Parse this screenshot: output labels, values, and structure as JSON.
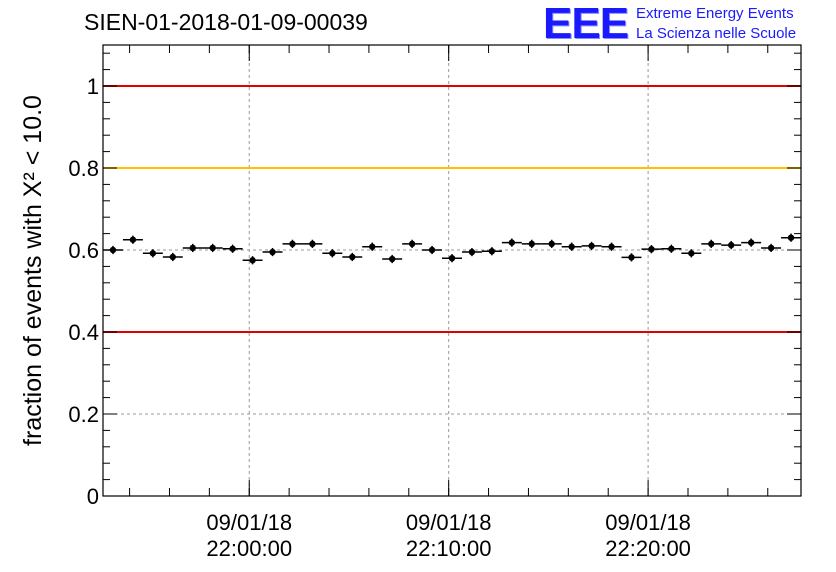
{
  "header": {
    "title": "SIEN-01-2018-01-09-00039"
  },
  "logo": {
    "mark": "EEE",
    "line1": "Extreme Energy Events",
    "line2": "La Scienza nelle Scuole"
  },
  "colors": {
    "limit_low_high": "#e00000",
    "limit_warning": "#ffc000",
    "markers": "#000000",
    "grid": "#999999",
    "logo": "#1a1aff"
  },
  "chart_data": {
    "type": "scatter",
    "title": "SIEN-01-2018-01-09-00039",
    "ylabel": "fraction of events with X² < 10.0",
    "xlabel": "",
    "ylim": [
      0,
      1.1
    ],
    "yticks": [
      0,
      0.2,
      0.4,
      0.6,
      0.8,
      1
    ],
    "ytick_labels": [
      "0",
      "0.2",
      "0.4",
      "0.6",
      "0.8",
      "1"
    ],
    "xlim": [
      "2018-01-09 21:52:40",
      "2018-01-09 22:27:40"
    ],
    "xticks": [
      "2018-01-09 22:00:00",
      "2018-01-09 22:10:00",
      "2018-01-09 22:20:00"
    ],
    "xtick_labels": [
      [
        "09/01/18",
        "22:00:00"
      ],
      [
        "09/01/18",
        "22:10:00"
      ],
      [
        "09/01/18",
        "22:20:00"
      ]
    ],
    "grid": true,
    "bin_width_seconds": 60,
    "reference_lines": [
      {
        "y": 1.0,
        "color": "#e00000"
      },
      {
        "y": 0.8,
        "color": "#ffc000"
      },
      {
        "y": 0.4,
        "color": "#e00000"
      }
    ],
    "series": [
      {
        "x": [
          "2018-01-09 21:53:10",
          "2018-01-09 21:54:10",
          "2018-01-09 21:55:10",
          "2018-01-09 21:56:10",
          "2018-01-09 21:57:10",
          "2018-01-09 21:58:10",
          "2018-01-09 21:59:10",
          "2018-01-09 22:00:10",
          "2018-01-09 22:01:10",
          "2018-01-09 22:02:10",
          "2018-01-09 22:03:10",
          "2018-01-09 22:04:10",
          "2018-01-09 22:05:10",
          "2018-01-09 22:06:10",
          "2018-01-09 22:07:10",
          "2018-01-09 22:08:10",
          "2018-01-09 22:09:10",
          "2018-01-09 22:10:10",
          "2018-01-09 22:11:10",
          "2018-01-09 22:12:10",
          "2018-01-09 22:13:10",
          "2018-01-09 22:14:10",
          "2018-01-09 22:15:10",
          "2018-01-09 22:16:10",
          "2018-01-09 22:17:10",
          "2018-01-09 22:18:10",
          "2018-01-09 22:19:10",
          "2018-01-09 22:20:10",
          "2018-01-09 22:21:10",
          "2018-01-09 22:22:10",
          "2018-01-09 22:23:10",
          "2018-01-09 22:24:10",
          "2018-01-09 22:25:10",
          "2018-01-09 22:26:10",
          "2018-01-09 22:27:10"
        ],
        "y": [
          0.6,
          0.625,
          0.592,
          0.583,
          0.605,
          0.605,
          0.603,
          0.575,
          0.595,
          0.615,
          0.615,
          0.592,
          0.583,
          0.608,
          0.578,
          0.615,
          0.6,
          0.58,
          0.595,
          0.597,
          0.618,
          0.615,
          0.615,
          0.608,
          0.61,
          0.608,
          0.582,
          0.602,
          0.603,
          0.592,
          0.615,
          0.612,
          0.618,
          0.605,
          0.63
        ],
        "yerr": 0.01
      }
    ]
  }
}
